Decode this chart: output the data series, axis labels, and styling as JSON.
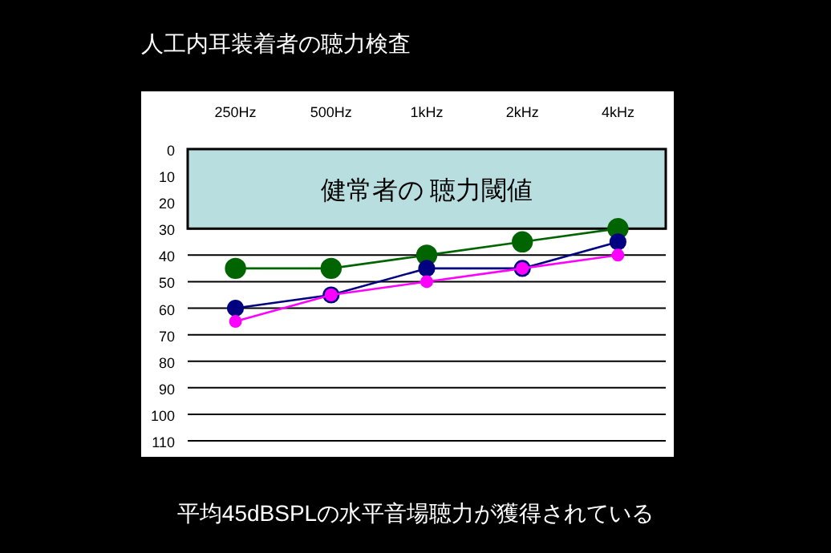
{
  "chart_data": {
    "type": "line",
    "title": "人工内耳装着者の聴力検査",
    "categories": [
      "250Hz",
      "500Hz",
      "1kHz",
      "2kHz",
      "4kHz"
    ],
    "series": [
      {
        "color": "#006400",
        "values": [
          45,
          45,
          40,
          35,
          30
        ]
      },
      {
        "color": "#000080",
        "values": [
          60,
          55,
          45,
          45,
          35
        ]
      },
      {
        "color": "#ff00ff",
        "values": [
          65,
          55,
          50,
          45,
          40
        ]
      }
    ],
    "ylim": [
      110,
      0
    ],
    "yticks": [
      0,
      10,
      20,
      30,
      40,
      50,
      60,
      70,
      80,
      90,
      100,
      110
    ],
    "grid": "y",
    "marker": "circle",
    "line_style": "solid",
    "bands": [
      {
        "axis": "y",
        "from": 0,
        "to": 30,
        "label": "健常者の 聴力閾値",
        "color": "#b8dee0"
      }
    ],
    "annotations": [
      "平均45dBSPLの水平音場聴力が獲得されている"
    ]
  }
}
